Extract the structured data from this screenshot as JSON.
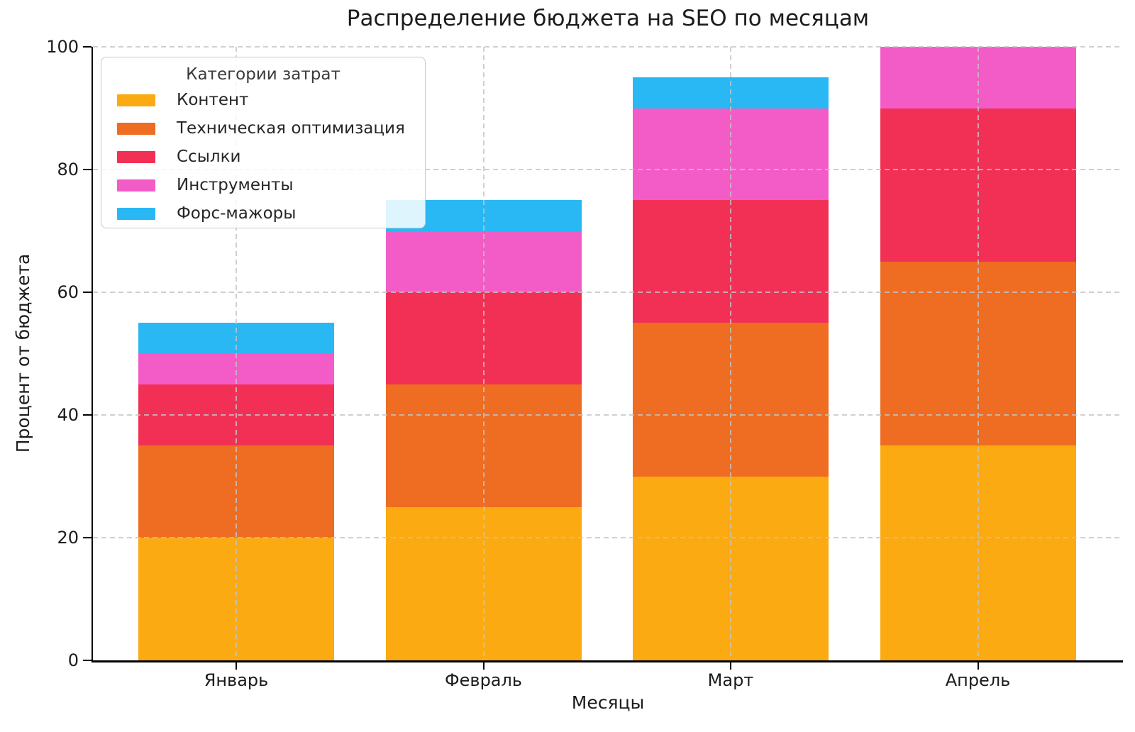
{
  "chart_data": {
    "type": "bar",
    "stacked": true,
    "title": "Распределение бюджета на SEO по месяцам",
    "xlabel": "Месяцы",
    "ylabel": "Процент от бюджета",
    "categories": [
      "Январь",
      "Февраль",
      "Март",
      "Апрель"
    ],
    "series": [
      {
        "name": "Контент",
        "color": "#FBAA12",
        "values": [
          20,
          25,
          30,
          35
        ]
      },
      {
        "name": "Техническая оптимизация",
        "color": "#EE6D22",
        "values": [
          15,
          20,
          25,
          30
        ]
      },
      {
        "name": "Ссылки",
        "color": "#F23056",
        "values": [
          10,
          15,
          20,
          25
        ]
      },
      {
        "name": "Инструменты",
        "color": "#F35CC6",
        "values": [
          5,
          10,
          15,
          10
        ]
      },
      {
        "name": "Форс-мажоры",
        "color": "#29B8F4",
        "values": [
          5,
          5,
          5,
          0
        ]
      }
    ],
    "totals": [
      55,
      75,
      95,
      100
    ],
    "ylim": [
      0,
      100
    ],
    "yticks": [
      0,
      20,
      40,
      60,
      80,
      100
    ],
    "grid": "dashed",
    "legend_title": "Категории затрат",
    "legend_position": "upper left"
  }
}
